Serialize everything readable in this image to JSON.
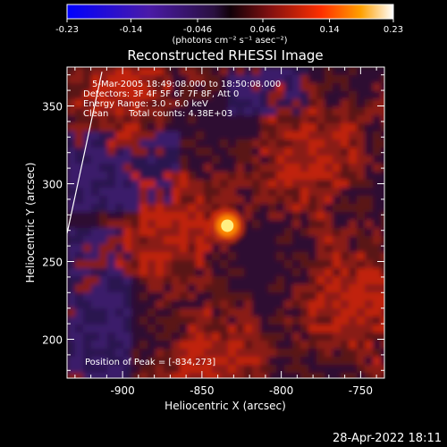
{
  "chart_data": {
    "type": "heatmap",
    "title": "Reconstructed RHESSI Image",
    "xlabel": "Heliocentric X (arcsec)",
    "ylabel": "Heliocentric Y (arcsec)",
    "xlim": [
      -935,
      -735
    ],
    "ylim": [
      175,
      375
    ],
    "x_ticks": [
      "-900",
      "-850",
      "-800",
      "-750"
    ],
    "x_tick_values": [
      -900,
      -850,
      -800,
      -750
    ],
    "y_ticks": [
      "200",
      "250",
      "300",
      "350"
    ],
    "y_tick_values": [
      200,
      250,
      300,
      350
    ],
    "colorbar": {
      "range": [
        -0.23,
        0.23
      ],
      "ticks": [
        "-0.23",
        "-0.14",
        "-0.046",
        "0.046",
        "0.14",
        "0.23"
      ],
      "tick_values": [
        -0.23,
        -0.14,
        -0.046,
        0.046,
        0.14,
        0.23
      ],
      "unit_label": "(photons cm⁻² s⁻¹ asec⁻²)"
    },
    "annotations": {
      "time": "5-Mar-2005 18:49:08.000 to 18:50:08.000",
      "detectors": "Detectors: 3F 4F 5F 6F 7F 8F, Att 0",
      "energy": "Energy Range: 3.0 - 6.0 keV",
      "clean_method": "Clean",
      "total_counts": "Total counts: 4.38E+03",
      "peak": "Position of Peak = [-834,273]"
    },
    "peak": {
      "x": -834,
      "y": 273,
      "value": 0.23
    },
    "limb_line": {
      "x": [
        -935,
        -913
      ],
      "y": [
        268,
        372
      ]
    }
  },
  "footer": {
    "date": "28-Apr-2022 18:11"
  },
  "colors": {
    "background": "#000000",
    "axis": "#ffffff"
  }
}
